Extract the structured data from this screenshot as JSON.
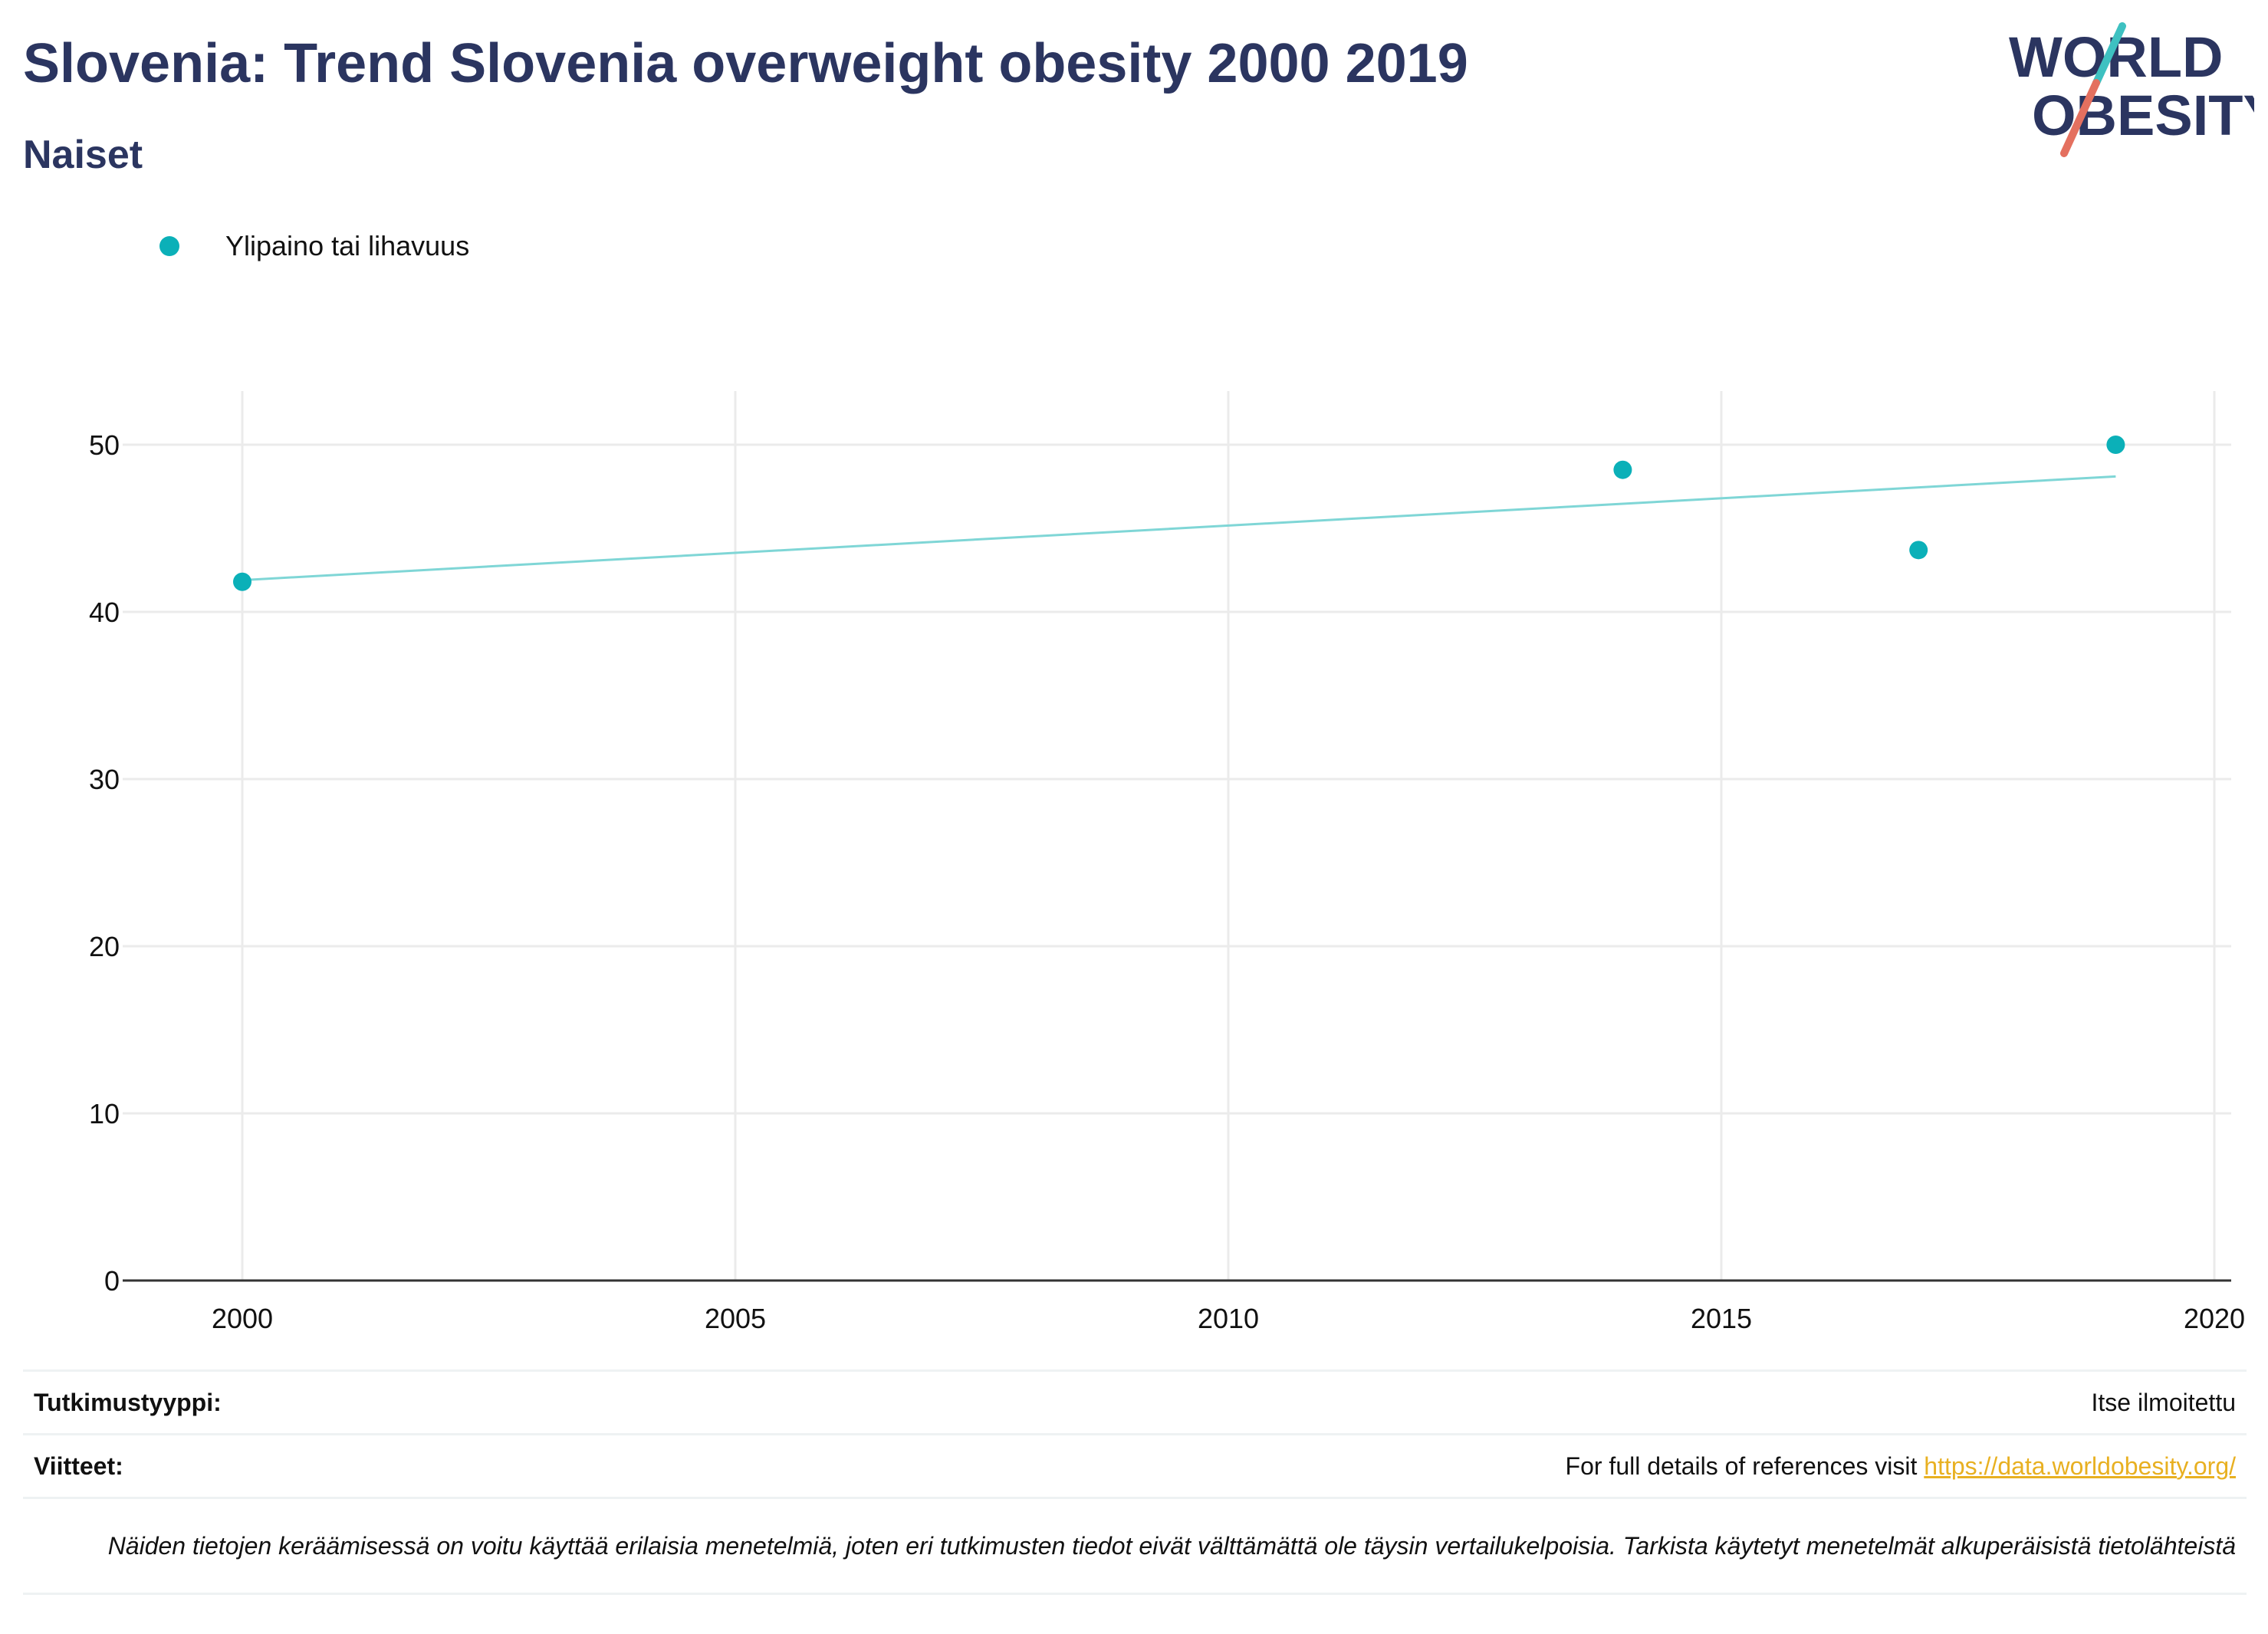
{
  "header": {
    "title": "Slovenia: Trend Slovenia overweight obesity 2000 2019",
    "subtitle": "Naiset"
  },
  "logo": {
    "line1": "WORLD",
    "line2": "OBESITY",
    "accent_teal": "#3ec1c1",
    "accent_coral": "#e4705f",
    "text_color": "#2b3560"
  },
  "legend": {
    "label": "Ylipaino tai lihavuus",
    "color": "#0bb0b8"
  },
  "chart_data": {
    "type": "scatter",
    "title": "Slovenia: Trend Slovenia overweight obesity 2000 2019",
    "subtitle": "Naiset",
    "xlabel": "",
    "ylabel": "",
    "xlim": [
      1999,
      2020.4
    ],
    "ylim": [
      0,
      53
    ],
    "x_ticks": [
      2000,
      2005,
      2010,
      2015,
      2020
    ],
    "y_ticks": [
      0,
      10,
      20,
      30,
      40,
      50
    ],
    "grid": true,
    "legend_position": "top-left",
    "series": [
      {
        "name": "Ylipaino tai lihavuus",
        "color": "#0bb0b8",
        "points": [
          {
            "x": 2000,
            "y": 41.8
          },
          {
            "x": 2014,
            "y": 48.5
          },
          {
            "x": 2017,
            "y": 43.7
          },
          {
            "x": 2019,
            "y": 50.0
          }
        ]
      }
    ],
    "trendline": {
      "color": "#7fd6d6",
      "x": [
        2000,
        2019
      ],
      "y": [
        41.9,
        48.1
      ]
    }
  },
  "footer": {
    "study_type_label": "Tutkimustyyppi:",
    "study_type_value": "Itse ilmoitettu",
    "references_label": "Viitteet:",
    "references_text": "For full details of references visit ",
    "references_link": "https://data.worldobesity.org/",
    "note": "Näiden tietojen keräämisessä on voitu käyttää erilaisia menetelmiä, joten eri tutkimusten tiedot eivät välttämättä ole täysin vertailukelpoisia. Tarkista käytetyt menetelmät alkuperäisistä tietolähteistä"
  }
}
